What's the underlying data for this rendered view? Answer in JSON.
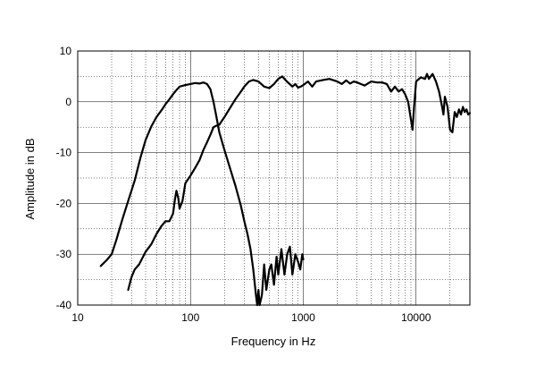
{
  "chart_data": {
    "type": "line",
    "title": "",
    "xlabel": "Frequency in Hz",
    "ylabel": "Amplitude in dB",
    "xscale": "log",
    "xlim": [
      10,
      30000
    ],
    "ylim": [
      -40,
      10
    ],
    "grid": true,
    "x_ticks": [
      {
        "value": 10,
        "label": "10"
      },
      {
        "value": 100,
        "label": "100"
      },
      {
        "value": 1000,
        "label": "1000"
      },
      {
        "value": 10000,
        "label": "10000"
      }
    ],
    "y_ticks": [
      {
        "value": 10,
        "label": "10"
      },
      {
        "value": 0,
        "label": "0"
      },
      {
        "value": -10,
        "label": "-10"
      },
      {
        "value": -20,
        "label": "-20"
      },
      {
        "value": -30,
        "label": "-30"
      },
      {
        "value": -40,
        "label": "-40"
      }
    ],
    "series": [
      {
        "points": [
          [
            16,
            -32.3
          ],
          [
            18,
            -31.2
          ],
          [
            20,
            -30.0
          ],
          [
            22,
            -27.2
          ],
          [
            25,
            -23.0
          ],
          [
            28,
            -19.5
          ],
          [
            32,
            -15.5
          ],
          [
            36,
            -11.0
          ],
          [
            40,
            -7.5
          ],
          [
            45,
            -4.8
          ],
          [
            50,
            -3.0
          ],
          [
            56,
            -1.5
          ],
          [
            60,
            -0.5
          ],
          [
            65,
            0.5
          ],
          [
            70,
            1.5
          ],
          [
            75,
            2.3
          ],
          [
            80,
            3.0
          ],
          [
            90,
            3.3
          ],
          [
            100,
            3.5
          ],
          [
            110,
            3.7
          ],
          [
            120,
            3.6
          ],
          [
            130,
            3.8
          ],
          [
            140,
            3.5
          ],
          [
            150,
            2.5
          ],
          [
            160,
            0.0
          ],
          [
            170,
            -3.0
          ],
          [
            180,
            -6.0
          ],
          [
            200,
            -9.5
          ],
          [
            220,
            -12.5
          ],
          [
            250,
            -16.5
          ],
          [
            280,
            -20.5
          ],
          [
            300,
            -23.5
          ],
          [
            320,
            -26.0
          ],
          [
            340,
            -29.0
          ],
          [
            360,
            -33.0
          ],
          [
            380,
            -38.0
          ],
          [
            390,
            -40.0
          ],
          [
            400,
            -37.0
          ],
          [
            410,
            -40.0
          ],
          [
            430,
            -38.0
          ],
          [
            450,
            -32.0
          ],
          [
            470,
            -37.0
          ],
          [
            500,
            -33.0
          ],
          [
            520,
            -32.0
          ],
          [
            550,
            -36.0
          ],
          [
            580,
            -30.5
          ],
          [
            600,
            -34.0
          ],
          [
            640,
            -29.0
          ],
          [
            680,
            -34.0
          ],
          [
            720,
            -30.0
          ],
          [
            760,
            -28.5
          ],
          [
            800,
            -34.0
          ],
          [
            850,
            -30.0
          ],
          [
            900,
            -31.5
          ],
          [
            940,
            -33.0
          ],
          [
            980,
            -30.0
          ],
          [
            1000,
            -31.0
          ]
        ]
      },
      {
        "points": [
          [
            28,
            -37.0
          ],
          [
            30,
            -34.5
          ],
          [
            32,
            -33.0
          ],
          [
            35,
            -32.0
          ],
          [
            40,
            -29.5
          ],
          [
            45,
            -28.0
          ],
          [
            50,
            -26.0
          ],
          [
            55,
            -24.5
          ],
          [
            60,
            -23.5
          ],
          [
            65,
            -23.5
          ],
          [
            70,
            -22.0
          ],
          [
            73,
            -19.0
          ],
          [
            75,
            -17.5
          ],
          [
            78,
            -19.0
          ],
          [
            80,
            -21.0
          ],
          [
            85,
            -19.5
          ],
          [
            90,
            -16.0
          ],
          [
            100,
            -14.5
          ],
          [
            110,
            -13.0
          ],
          [
            120,
            -11.5
          ],
          [
            130,
            -9.5
          ],
          [
            140,
            -8.0
          ],
          [
            150,
            -6.5
          ],
          [
            160,
            -5.0
          ],
          [
            170,
            -4.7
          ],
          [
            180,
            -4.5
          ],
          [
            200,
            -3.0
          ],
          [
            220,
            -1.5
          ],
          [
            250,
            0.5
          ],
          [
            280,
            2.0
          ],
          [
            300,
            3.0
          ],
          [
            330,
            4.0
          ],
          [
            360,
            4.3
          ],
          [
            400,
            4.0
          ],
          [
            450,
            3.0
          ],
          [
            500,
            2.7
          ],
          [
            550,
            3.5
          ],
          [
            600,
            4.5
          ],
          [
            650,
            5.0
          ],
          [
            700,
            4.2
          ],
          [
            800,
            3.0
          ],
          [
            850,
            3.5
          ],
          [
            900,
            2.8
          ],
          [
            950,
            3.0
          ],
          [
            1000,
            3.3
          ],
          [
            1100,
            4.0
          ],
          [
            1200,
            3.0
          ],
          [
            1300,
            4.0
          ],
          [
            1500,
            4.3
          ],
          [
            1700,
            4.5
          ],
          [
            2000,
            4.0
          ],
          [
            2200,
            3.5
          ],
          [
            2400,
            4.2
          ],
          [
            2600,
            3.6
          ],
          [
            2800,
            4.0
          ],
          [
            3000,
            3.8
          ],
          [
            3500,
            3.2
          ],
          [
            4000,
            4.0
          ],
          [
            4500,
            3.8
          ],
          [
            5000,
            3.8
          ],
          [
            5500,
            3.5
          ],
          [
            6000,
            2.0
          ],
          [
            6500,
            3.0
          ],
          [
            7000,
            2.0
          ],
          [
            7500,
            2.5
          ],
          [
            8000,
            1.5
          ],
          [
            8500,
            0.0
          ],
          [
            9000,
            -3.5
          ],
          [
            9300,
            -5.5
          ],
          [
            9600,
            -1.0
          ],
          [
            10000,
            4.0
          ],
          [
            11000,
            4.8
          ],
          [
            12000,
            4.5
          ],
          [
            12500,
            5.5
          ],
          [
            13000,
            4.5
          ],
          [
            14000,
            5.5
          ],
          [
            15000,
            4.0
          ],
          [
            16000,
            2.0
          ],
          [
            17000,
            -1.0
          ],
          [
            17500,
            -2.5
          ],
          [
            18000,
            1.0
          ],
          [
            19000,
            -1.0
          ],
          [
            20000,
            -5.5
          ],
          [
            21000,
            -6.0
          ],
          [
            22000,
            -2.0
          ],
          [
            23000,
            -3.0
          ],
          [
            24000,
            -1.5
          ],
          [
            25000,
            -2.5
          ],
          [
            26000,
            -1.0
          ],
          [
            27000,
            -2.0
          ],
          [
            28000,
            -1.5
          ],
          [
            29000,
            -2.5
          ],
          [
            30000,
            -2.2
          ]
        ]
      }
    ]
  }
}
